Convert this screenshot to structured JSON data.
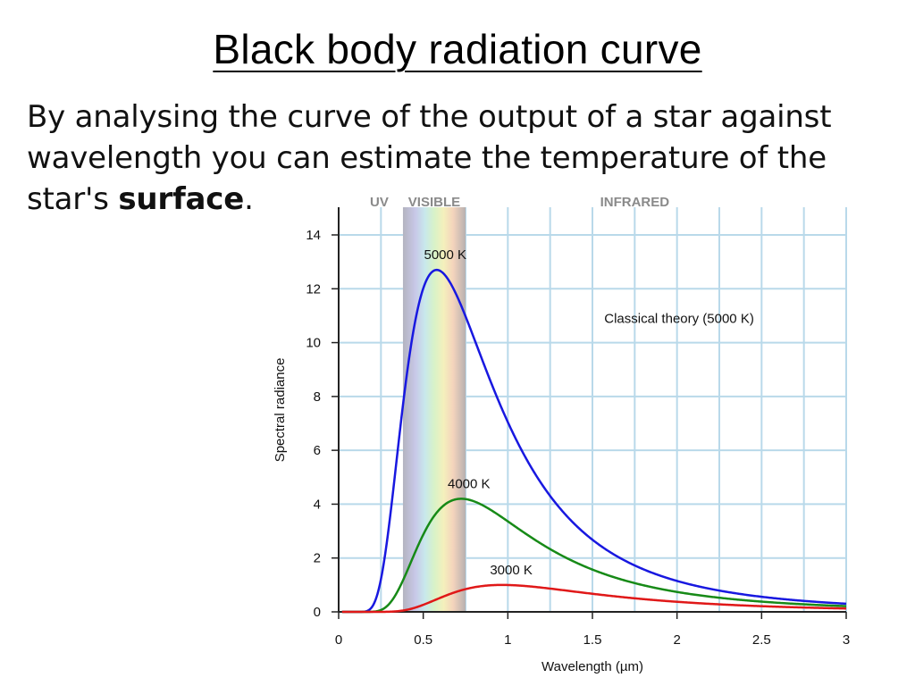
{
  "slide": {
    "title": "Black body radiation curve",
    "body_line1": "By analysing the curve of the output of a star against",
    "body_line2": "wavelength you can estimate the temperature of the",
    "body_line3_pre": "star's ",
    "body_line3_bold": "surface",
    "body_line3_post": "."
  },
  "chart_data": {
    "type": "line",
    "xlabel": "Wavelength (µm)",
    "ylabel": "Spectral radiance",
    "xlim": [
      0,
      3
    ],
    "ylim": [
      0,
      15
    ],
    "xticks": [
      "0",
      "0.5",
      "1",
      "1.5",
      "2",
      "2.5",
      "3"
    ],
    "yticks": [
      "0",
      "2",
      "4",
      "6",
      "8",
      "10",
      "12",
      "14"
    ],
    "grid": true,
    "band_labels": {
      "uv": "UV",
      "visible": "VISIBLE",
      "infrared": "INFRARED"
    },
    "visible_band": [
      0.38,
      0.75
    ],
    "series": [
      {
        "name": "5000 K",
        "color": "#1818e0",
        "temperature": 5000,
        "peak_x": 0.58,
        "peak_y": 12.7
      },
      {
        "name": "4000 K",
        "color": "#178a17",
        "temperature": 4000,
        "peak_x": 0.72,
        "peak_y": 4.2
      },
      {
        "name": "3000 K",
        "color": "#e01818",
        "temperature": 3000,
        "peak_x": 0.97,
        "peak_y": 1.0
      },
      {
        "name": "Classical theory (5000 K)",
        "color": "#000000",
        "temperature": 5000,
        "classical": true
      }
    ]
  }
}
